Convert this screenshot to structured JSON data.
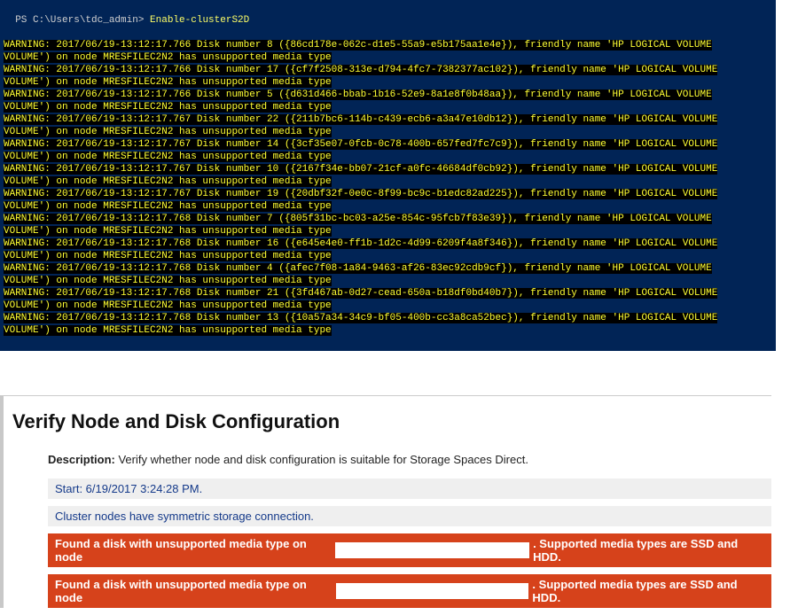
{
  "console": {
    "bg": "#012456",
    "text_color": "#d0d0d0",
    "warn_fg": "#ffff33",
    "warn_bg": "#000000",
    "prompt_prefix": "PS C:\\Users\\tdc_admin> ",
    "prompt_cmd": "Enable-clusterS2D",
    "friendly_name": "HP LOGICAL VOLUME",
    "node": "MRESFILEC2N2",
    "unsupported_text": "has unsupported media type",
    "warnings": [
      {
        "ts": "2017/06/19-13:12:17.766",
        "disk": 8,
        "guid": "{86cd178e-062c-d1e5-55a9-e5b175aa1e4e}"
      },
      {
        "ts": "2017/06/19-13:12:17.766",
        "disk": 17,
        "guid": "{cf7f2508-313e-d794-4fc7-7382377ac102}"
      },
      {
        "ts": "2017/06/19-13:12:17.766",
        "disk": 5,
        "guid": "{d631d466-bbab-1b16-52e9-8a1e8f0b48aa}"
      },
      {
        "ts": "2017/06/19-13:12:17.767",
        "disk": 22,
        "guid": "{211b7bc6-114b-c439-ecb6-a3a47e10db12}"
      },
      {
        "ts": "2017/06/19-13:12:17.767",
        "disk": 14,
        "guid": "{3cf35e07-0fcb-0c78-400b-657fed7fc7c9}"
      },
      {
        "ts": "2017/06/19-13:12:17.767",
        "disk": 10,
        "guid": "{2167f34e-bb07-21cf-a0fc-46684df0cb92}"
      },
      {
        "ts": "2017/06/19-13:12:17.767",
        "disk": 19,
        "guid": "{20dbf32f-0e0c-8f99-bc9c-b1edc82ad225}"
      },
      {
        "ts": "2017/06/19-13:12:17.768",
        "disk": 7,
        "guid": "{805f31bc-bc03-a25e-854c-95fcb7f83e39}"
      },
      {
        "ts": "2017/06/19-13:12:17.768",
        "disk": 16,
        "guid": "{e645e4e0-ff1b-1d2c-4d99-6209f4a8f346}"
      },
      {
        "ts": "2017/06/19-13:12:17.768",
        "disk": 4,
        "guid": "{afec7f08-1a84-9463-af26-83ec92cdb9cf}"
      },
      {
        "ts": "2017/06/19-13:12:17.768",
        "disk": 21,
        "guid": "{3fd467ab-0d27-cead-650a-b18df0bd40b7}"
      },
      {
        "ts": "2017/06/19-13:12:17.768",
        "disk": 13,
        "guid": "{10a57a34-34c9-bf05-400b-cc3a8ca52bec}"
      }
    ]
  },
  "report": {
    "title": "Verify Node and Disk Configuration",
    "desc_label": "Description:",
    "desc_text": "Verify whether node and disk configuration is suitable for Storage Spaces Direct.",
    "start_text": "Start: 6/19/2017 3:24:28 PM.",
    "symmetric_text": "Cluster nodes have symmetric storage connection.",
    "err_prefix": "Found a disk with unsupported media type on node",
    "err_suffix": ". Supported media types are SSD and HDD.",
    "err_gap1_width": 224,
    "err_gap2_width": 222,
    "err_bg": "#d6421b"
  }
}
